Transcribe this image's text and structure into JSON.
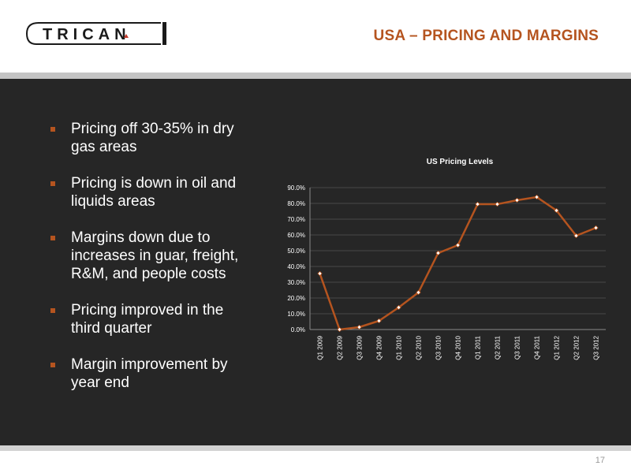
{
  "header": {
    "logo_text": "TRICAN",
    "title": "USA – PRICING AND MARGINS"
  },
  "bullets": [
    "Pricing off 30-35% in dry gas areas",
    "Pricing is down in oil and liquids areas",
    "Margins down due to increases in guar, freight, R&M, and people costs",
    "Pricing improved in the third quarter",
    "Margin improvement by year end"
  ],
  "colors": {
    "accent": "#b5541f",
    "panel": "#262626",
    "line": "#b5541f"
  },
  "chart_data": {
    "type": "line",
    "title": "US Pricing Levels",
    "xlabel": "",
    "ylabel": "",
    "ylim": [
      0,
      90
    ],
    "yticks": [
      "0.0%",
      "10.0%",
      "20.0%",
      "30.0%",
      "40.0%",
      "50.0%",
      "60.0%",
      "70.0%",
      "80.0%",
      "90.0%"
    ],
    "grid": true,
    "categories": [
      "Q1 2009",
      "Q2 2009",
      "Q3 2009",
      "Q4 2009",
      "Q1 2010",
      "Q2 2010",
      "Q3 2010",
      "Q4 2010",
      "Q1 2011",
      "Q2 2011",
      "Q3 2011",
      "Q4 2011",
      "Q1 2012",
      "Q2 2012",
      "Q3 2012"
    ],
    "values": [
      35.5,
      0.0,
      1.5,
      5.5,
      14.0,
      23.5,
      48.5,
      53.5,
      79.5,
      79.5,
      82.0,
      84.0,
      75.5,
      59.5,
      64.5
    ]
  },
  "footer": {
    "page_number": "17"
  }
}
